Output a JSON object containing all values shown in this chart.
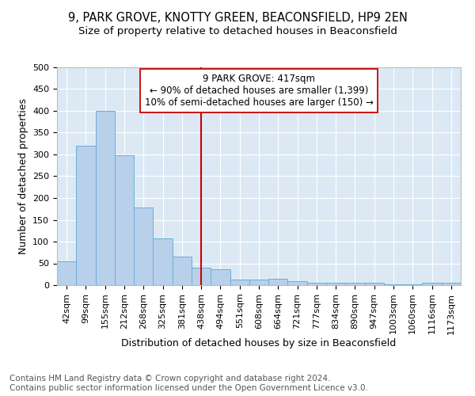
{
  "title_line1": "9, PARK GROVE, KNOTTY GREEN, BEACONSFIELD, HP9 2EN",
  "title_line2": "Size of property relative to detached houses in Beaconsfield",
  "xlabel": "Distribution of detached houses by size in Beaconsfield",
  "ylabel": "Number of detached properties",
  "categories": [
    "42sqm",
    "99sqm",
    "155sqm",
    "212sqm",
    "268sqm",
    "325sqm",
    "381sqm",
    "438sqm",
    "494sqm",
    "551sqm",
    "608sqm",
    "664sqm",
    "721sqm",
    "777sqm",
    "834sqm",
    "890sqm",
    "947sqm",
    "1003sqm",
    "1060sqm",
    "1116sqm",
    "1173sqm"
  ],
  "values": [
    55,
    320,
    400,
    298,
    178,
    108,
    65,
    40,
    37,
    12,
    12,
    15,
    10,
    5,
    6,
    6,
    5,
    1,
    1,
    5,
    6
  ],
  "bar_color": "#b8d0ea",
  "bar_edge_color": "#6aaed6",
  "vline_x": 7.0,
  "vline_color": "#cc0000",
  "annotation_text": "9 PARK GROVE: 417sqm\n← 90% of detached houses are smaller (1,399)\n10% of semi-detached houses are larger (150) →",
  "annotation_box_color": "#ffffff",
  "annotation_box_edge": "#cc0000",
  "ylim": [
    0,
    500
  ],
  "yticks": [
    0,
    50,
    100,
    150,
    200,
    250,
    300,
    350,
    400,
    450,
    500
  ],
  "plot_bg": "#dce9f5",
  "footer": "Contains HM Land Registry data © Crown copyright and database right 2024.\nContains public sector information licensed under the Open Government Licence v3.0.",
  "title_fontsize": 10.5,
  "subtitle_fontsize": 9.5,
  "axis_label_fontsize": 9,
  "tick_fontsize": 8,
  "annotation_fontsize": 8.5,
  "footer_fontsize": 7.5
}
